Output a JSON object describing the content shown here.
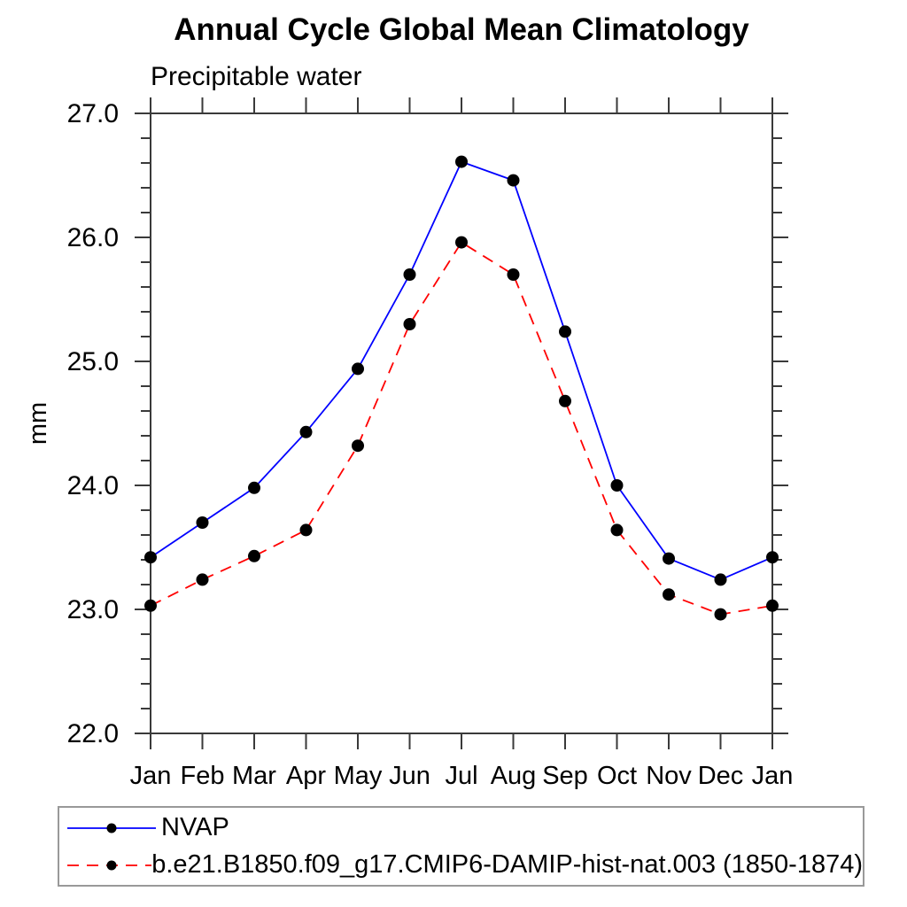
{
  "chart_data": {
    "type": "line",
    "title": "Annual Cycle Global Mean Climatology",
    "subtitle": "Precipitable water",
    "ylabel": "mm",
    "xlabel": "",
    "categories": [
      "Jan",
      "Feb",
      "Mar",
      "Apr",
      "May",
      "Jun",
      "Jul",
      "Aug",
      "Sep",
      "Oct",
      "Nov",
      "Dec",
      "Jan"
    ],
    "ylim": [
      22.0,
      27.0
    ],
    "ytick_major_step": 1.0,
    "ytick_minor_step": 0.2,
    "ytick_labels": [
      "22.0",
      "23.0",
      "24.0",
      "25.0",
      "26.0",
      "27.0"
    ],
    "grid": false,
    "legend_position": "bottom-box",
    "marker": "filled-circle",
    "marker_color": "#000000",
    "series": [
      {
        "name": "NVAP",
        "color": "#0000ff",
        "line_style": "solid",
        "values": [
          23.42,
          23.7,
          23.98,
          24.43,
          24.94,
          25.7,
          26.61,
          26.46,
          25.24,
          24.0,
          23.41,
          23.24,
          23.42
        ]
      },
      {
        "name": "b.e21.B1850.f09_g17.CMIP6-DAMIP-hist-nat.003 (1850-1874)",
        "color": "#ff0000",
        "line_style": "dashed",
        "values": [
          23.03,
          23.24,
          23.43,
          23.64,
          24.32,
          25.3,
          25.96,
          25.7,
          24.68,
          23.64,
          23.12,
          22.96,
          23.03
        ]
      }
    ]
  }
}
